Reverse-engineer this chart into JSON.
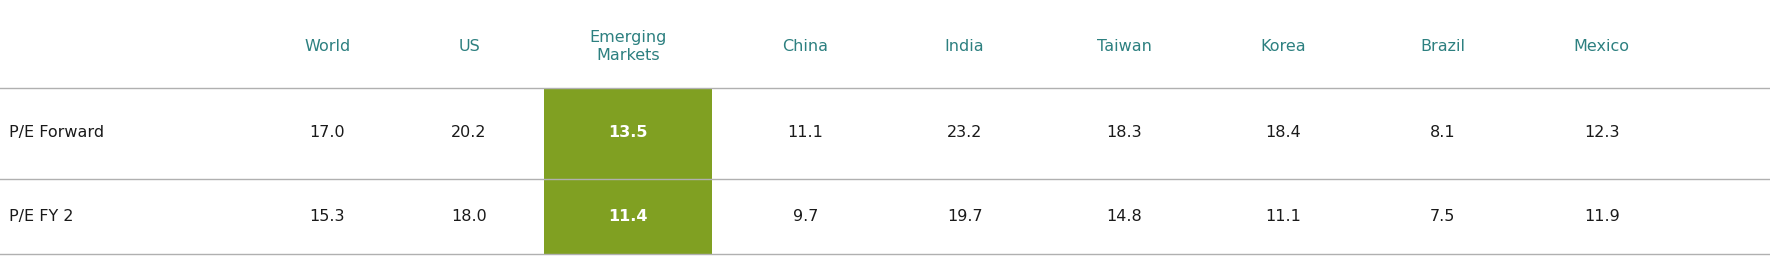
{
  "columns": [
    "",
    "World",
    "US",
    "Emerging\nMarkets",
    "China",
    "India",
    "Taiwan",
    "Korea",
    "Brazil",
    "Mexico"
  ],
  "row1_label": "P/E Forward",
  "row2_label": "P/E FY 2",
  "row1_values": [
    "17.0",
    "20.2",
    "13.5",
    "11.1",
    "23.2",
    "18.3",
    "18.4",
    "8.1",
    "12.3"
  ],
  "row2_values": [
    "15.3",
    "18.0",
    "11.4",
    "9.7",
    "19.7",
    "14.8",
    "11.1",
    "7.5",
    "11.9"
  ],
  "header_color": "#2d8080",
  "highlight_color": "#80a022",
  "highlight_text_color": "#ffffff",
  "row_label_color": "#1a1a1a",
  "value_color": "#1a1a1a",
  "line_color": "#b0b0b0",
  "bg_color": "#ffffff",
  "hi_col": 2,
  "figsize": [
    17.7,
    2.59
  ],
  "dpi": 100
}
